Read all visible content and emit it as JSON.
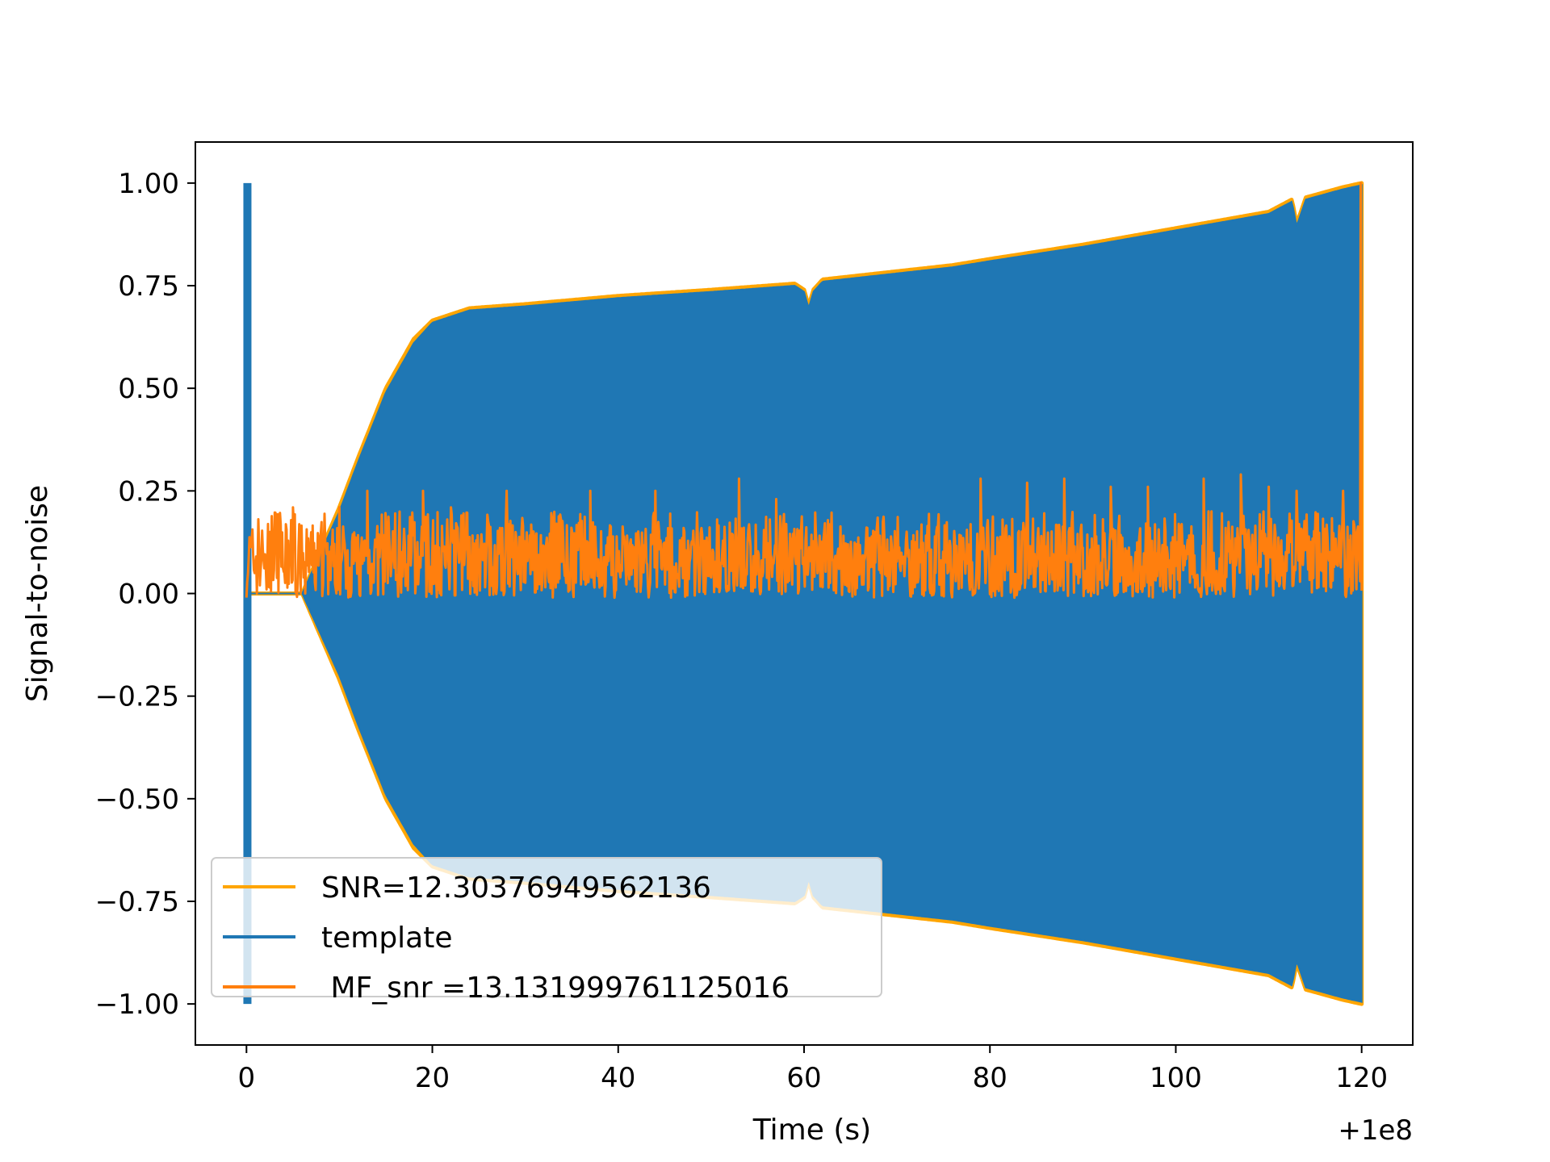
{
  "chart_data": {
    "type": "line",
    "title": "",
    "xlabel": "Time (s)",
    "ylabel": "Signal-to-noise",
    "x_offset_label": "+1e8",
    "xlim": [
      -5.5,
      125.5
    ],
    "ylim": [
      -1.1,
      1.1
    ],
    "xticks": [
      0,
      20,
      40,
      60,
      80,
      100,
      120
    ],
    "xtick_labels": [
      "0",
      "20",
      "40",
      "60",
      "80",
      "100",
      "120"
    ],
    "yticks": [
      1.0,
      0.75,
      0.5,
      0.25,
      0.0,
      -0.25,
      -0.5,
      -0.75,
      -1.0
    ],
    "ytick_labels": [
      "1.00",
      "0.75",
      "0.50",
      "0.25",
      "0.00",
      "−0.25",
      "−0.50",
      "−0.75",
      "−1.00"
    ],
    "grid": false,
    "legend_position": "lower-left",
    "series": [
      {
        "name": "SNR=12.30376949562136",
        "color": "#ffa500",
        "kind": "envelope",
        "x": [
          0,
          2,
          6,
          10,
          12,
          15,
          18,
          20,
          22,
          24,
          30,
          40,
          50,
          59,
          60,
          60.5,
          61,
          62,
          70,
          76,
          80,
          90,
          100,
          110,
          112.5,
          113,
          114,
          118,
          120
        ],
        "upper": [
          0.0,
          0.0,
          0.0,
          0.21,
          0.33,
          0.5,
          0.62,
          0.665,
          0.68,
          0.695,
          0.705,
          0.725,
          0.74,
          0.755,
          0.74,
          0.7,
          0.74,
          0.765,
          0.785,
          0.8,
          0.815,
          0.85,
          0.89,
          0.93,
          0.96,
          0.9,
          0.965,
          0.99,
          1.0
        ]
      },
      {
        "name": "template",
        "color": "#1f77b4",
        "kind": "envelope",
        "x": [
          0,
          2,
          6,
          10,
          12,
          15,
          18,
          20,
          22,
          24,
          30,
          40,
          50,
          59,
          60,
          60.5,
          61,
          62,
          70,
          76,
          80,
          90,
          100,
          110,
          112.5,
          113,
          114,
          118,
          120
        ],
        "upper": [
          0.0,
          0.0,
          0.0,
          0.2,
          0.32,
          0.49,
          0.61,
          0.66,
          0.675,
          0.69,
          0.7,
          0.72,
          0.735,
          0.75,
          0.735,
          0.695,
          0.735,
          0.76,
          0.78,
          0.795,
          0.81,
          0.845,
          0.885,
          0.925,
          0.955,
          0.895,
          0.96,
          0.985,
          0.995
        ],
        "spike_x": 0.1,
        "spike_range": [
          -1.0,
          1.0
        ]
      },
      {
        "name": " MF_snr =13.131999761125016",
        "color": "#ff7f0e",
        "kind": "noise",
        "x_range": [
          0,
          120
        ],
        "baseline": 0.08,
        "band": [
          0.0,
          0.2
        ],
        "peaks": [
          {
            "x": 5,
            "y": 0.21
          },
          {
            "x": 10,
            "y": 0.21
          },
          {
            "x": 13,
            "y": 0.25
          },
          {
            "x": 19,
            "y": 0.25
          },
          {
            "x": 22,
            "y": 0.21
          },
          {
            "x": 28,
            "y": 0.25
          },
          {
            "x": 37,
            "y": 0.25
          },
          {
            "x": 44,
            "y": 0.25
          },
          {
            "x": 53,
            "y": 0.28
          },
          {
            "x": 57,
            "y": 0.23
          },
          {
            "x": 79,
            "y": 0.28
          },
          {
            "x": 84,
            "y": 0.27
          },
          {
            "x": 88,
            "y": 0.28
          },
          {
            "x": 93,
            "y": 0.26
          },
          {
            "x": 97,
            "y": 0.26
          },
          {
            "x": 103,
            "y": 0.28
          },
          {
            "x": 107,
            "y": 0.29
          },
          {
            "x": 110,
            "y": 0.26
          },
          {
            "x": 113,
            "y": 0.25
          },
          {
            "x": 118,
            "y": 0.25
          },
          {
            "x": 119.9,
            "y": 1.0
          }
        ]
      }
    ]
  }
}
